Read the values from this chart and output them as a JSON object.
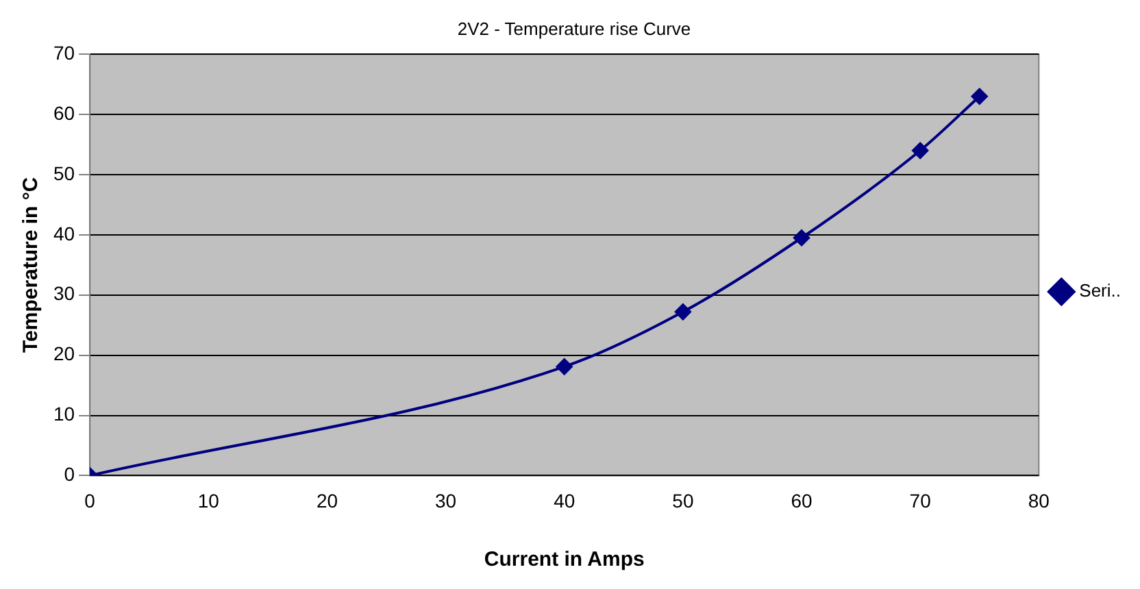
{
  "chart_data": {
    "type": "line",
    "title": "2V2 - Temperature rise Curve",
    "xlabel": "Current in Amps",
    "ylabel": "Temperature in °C",
    "x": [
      0,
      40,
      50,
      60,
      70,
      75
    ],
    "series": [
      {
        "name": "Seri..",
        "color": "#000080",
        "values": [
          0,
          18.1,
          27.2,
          39.5,
          54,
          63
        ]
      }
    ],
    "xlim": [
      0,
      80
    ],
    "xticks": [
      0,
      10,
      20,
      30,
      40,
      50,
      60,
      70,
      80
    ],
    "ylim": [
      0,
      70
    ],
    "yticks": [
      0,
      10,
      20,
      30,
      40,
      50,
      60,
      70
    ],
    "grid": "y",
    "legend": "right",
    "marker": "diamond",
    "line_style": "solid"
  }
}
